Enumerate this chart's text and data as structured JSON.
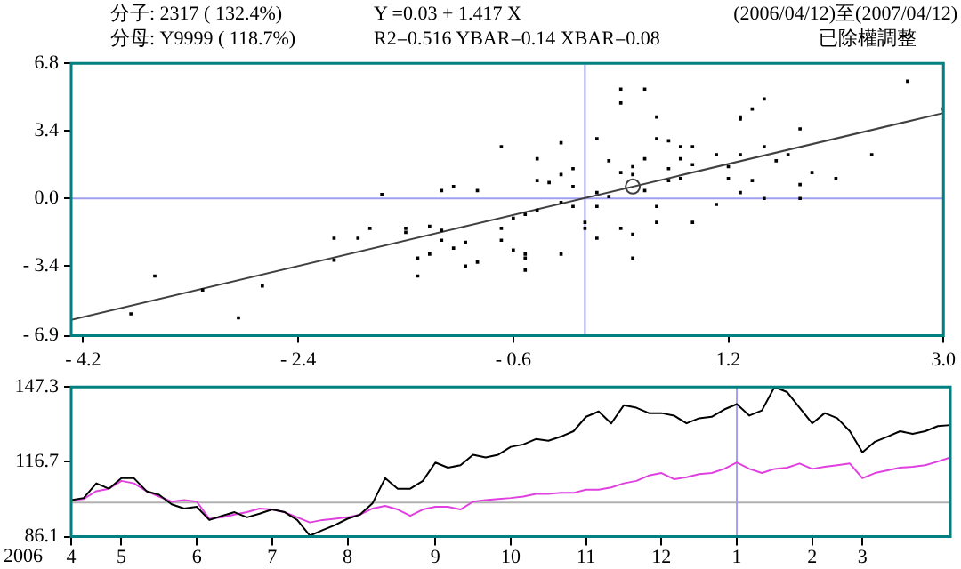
{
  "chart_data": [
    {
      "type": "scatter",
      "annotations": [
        "分子: 2317 ( 132.4%)",
        "Y =0.03 + 1.417 X",
        "(2006/04/12)至(2007/04/12)",
        "分母: Y9999 ( 118.7%)",
        "R2=0.516    YBAR=0.14    XBAR=0.08",
        "已除權調整"
      ],
      "xlim": [
        -4.3,
        3.0
      ],
      "xticks": [
        {
          "value": -4.2,
          "label": "- 4.2"
        },
        {
          "value": -2.4,
          "label": "- 2.4"
        },
        {
          "value": -0.6,
          "label": "- 0.6"
        },
        1.2,
        {
          "value": 3,
          "label": "3.0"
        }
      ],
      "ylim": [
        -6.9,
        6.8
      ],
      "yticks": [
        {
          "value": -6.9,
          "label": "- 6.9"
        },
        {
          "value": -3.4,
          "label": "- 3.4"
        },
        {
          "value": 0,
          "label": "0.0"
        },
        3.4,
        6.8
      ],
      "grid": false,
      "legend": false,
      "ref_lines": [
        {
          "axis": "x",
          "value": 0,
          "color": "#a0a0f0"
        },
        {
          "axis": "y",
          "value": 0,
          "color": "#a0a0f0"
        }
      ],
      "series": [
        {
          "marker": "square",
          "color": "#000000",
          "x": [
            2.7,
            3.0,
            0.3,
            0.3,
            0.5,
            0.6,
            1.5,
            1.4,
            1.3,
            1.3,
            0.1,
            -0.2,
            -0.7,
            1.8,
            2.4,
            1.9,
            2.1,
            1.8,
            1.8,
            -1.7,
            -1.2,
            -1.1,
            -0.9,
            -1.8,
            -1.5,
            -1.5,
            -1.3,
            -1.2,
            -2.1,
            -1.9,
            -2.1,
            -2.7,
            -2.9,
            -3.2,
            -3.6,
            -3.8,
            -1.4,
            -1.4,
            -1.3,
            -1.2,
            -1.1,
            -1.0,
            -1.0,
            -0.9,
            -0.7,
            -0.7,
            -0.6,
            -0.5,
            -0.5,
            -0.5,
            -0.6,
            -0.5,
            -0.4,
            -0.4,
            -0.3,
            -0.2,
            -0.2,
            -0.2,
            -0.1,
            -0.1,
            -0.1,
            0.0,
            0.0,
            0.1,
            0.1,
            0.1,
            0.2,
            0.2,
            0.3,
            0.3,
            0.4,
            0.4,
            0.4,
            0.5,
            0.6,
            0.6,
            0.6,
            0.7,
            0.7,
            0.7,
            0.8,
            0.8,
            0.8,
            0.9,
            0.9,
            1.1,
            1.1,
            1.2,
            1.2,
            1.3,
            1.3,
            1.4,
            1.5,
            1.6,
            1.7,
            0.4,
            0.5,
            -0.4,
            1.5,
            0.9
          ],
          "values": [
            5.9,
            4.5,
            5.5,
            4.8,
            5.5,
            4.1,
            5.0,
            4.5,
            4.1,
            4.0,
            3.0,
            2.8,
            2.6,
            3.5,
            2.2,
            1.3,
            1.0,
            0.7,
            0,
            0.2,
            0.4,
            0.6,
            0.4,
            -1.5,
            -1.5,
            -1.7,
            -1.4,
            -1.6,
            -2.0,
            -2.0,
            -3.1,
            -4.4,
            -6.0,
            -4.6,
            -3.9,
            -5.8,
            -3.0,
            -3.9,
            -2.8,
            -2.1,
            -2.5,
            -2.2,
            -3.4,
            -3.2,
            -1.5,
            -2.1,
            -2.6,
            -3.6,
            -2.8,
            -3.0,
            -1.0,
            -0.8,
            -0.6,
            0.9,
            0.8,
            -0.2,
            -2.8,
            1.2,
            0.6,
            1.5,
            -0.4,
            -1.2,
            -1.5,
            0.3,
            -0.4,
            -2.0,
            0.1,
            1.9,
            1.3,
            -1.5,
            -3.0,
            1.6,
            -1.8,
            2.0,
            3.0,
            -1.2,
            -0.4,
            0.9,
            1.5,
            2.9,
            2.6,
            1.0,
            2.0,
            2.6,
            -1.2,
            -0.3,
            2.2,
            1.0,
            1.6,
            0.3,
            2.2,
            0.9,
            2.6,
            1.9,
            2.2,
            1.2,
            0.4,
            2.0,
            0,
            1.7
          ]
        },
        {
          "marker": "circle",
          "color": "#404040",
          "x": [
            0.4
          ],
          "values": [
            0.6
          ]
        },
        {
          "type": "line",
          "marker": "none",
          "color": "#404040",
          "x": [
            -4.3,
            3.0
          ],
          "values": [
            -6.1,
            4.3
          ]
        }
      ]
    },
    {
      "type": "line",
      "xlabel": "2006",
      "legend": false,
      "grid": false,
      "categories": [
        "4",
        null,
        null,
        null,
        "5",
        null,
        null,
        null,
        null,
        null,
        "6",
        null,
        null,
        null,
        null,
        null,
        "7",
        null,
        null,
        null,
        null,
        null,
        "8",
        null,
        null,
        null,
        null,
        null,
        null,
        "9",
        null,
        null,
        null,
        null,
        null,
        "10",
        null,
        null,
        null,
        null,
        null,
        "11",
        null,
        null,
        null,
        null,
        null,
        "12",
        null,
        null,
        null,
        null,
        null,
        "1",
        null,
        null,
        null,
        null,
        null,
        "2",
        null,
        null,
        null,
        "3",
        null,
        null,
        null,
        null,
        null,
        null,
        null
      ],
      "ylim": [
        86.1,
        147.3
      ],
      "yticks": [
        86.1,
        116.7,
        147.3
      ],
      "ref_lines": [
        {
          "axis": "y",
          "value": 100,
          "color": "#b0b0b0"
        },
        {
          "axis": "x",
          "value": "1",
          "color": "#a0a0f0"
        }
      ],
      "series": [
        {
          "color": "#000000",
          "values": [
            101.0,
            101.9,
            107.9,
            105.7,
            110.0,
            110.0,
            104.7,
            103.2,
            99.3,
            97.6,
            98.3,
            92.9,
            94.6,
            96.1,
            94.0,
            95.5,
            97.2,
            96.1,
            92.9,
            86.5,
            88.7,
            90.8,
            93.4,
            95.1,
            99.8,
            110.0,
            105.7,
            105.7,
            108.9,
            116.4,
            114.3,
            115.3,
            119.6,
            118.5,
            119.6,
            122.8,
            123.8,
            126.0,
            125.3,
            127.0,
            129.2,
            135.1,
            137.3,
            132.4,
            139.8,
            138.8,
            136.6,
            136.6,
            135.6,
            132.4,
            134.5,
            135.1,
            138.1,
            140.3,
            135.6,
            137.7,
            147.3,
            145.2,
            138.8,
            132.4,
            136.6,
            134.5,
            129.2,
            120.6,
            124.9,
            127.0,
            129.2,
            128.1,
            129.2,
            131.3,
            131.7
          ]
        },
        {
          "color": "#e040e0",
          "values": [
            101.0,
            101.5,
            104.7,
            105.7,
            108.9,
            107.9,
            104.7,
            102.5,
            100.4,
            101.0,
            100.4,
            93.4,
            94.0,
            95.1,
            96.1,
            97.6,
            97.2,
            96.1,
            94.0,
            91.9,
            92.9,
            93.4,
            94.0,
            95.1,
            97.6,
            98.7,
            97.2,
            94.6,
            97.2,
            98.3,
            98.3,
            97.2,
            100.4,
            101.0,
            101.5,
            101.9,
            102.5,
            103.6,
            103.6,
            104.0,
            104.0,
            105.3,
            105.3,
            106.2,
            107.9,
            108.9,
            111.1,
            112.1,
            109.6,
            110.4,
            111.7,
            112.1,
            113.8,
            116.4,
            113.8,
            112.1,
            113.8,
            114.3,
            116.0,
            113.8,
            114.7,
            115.3,
            116.0,
            110.0,
            112.1,
            113.2,
            114.3,
            114.7,
            115.3,
            116.8,
            118.5
          ]
        }
      ]
    }
  ]
}
